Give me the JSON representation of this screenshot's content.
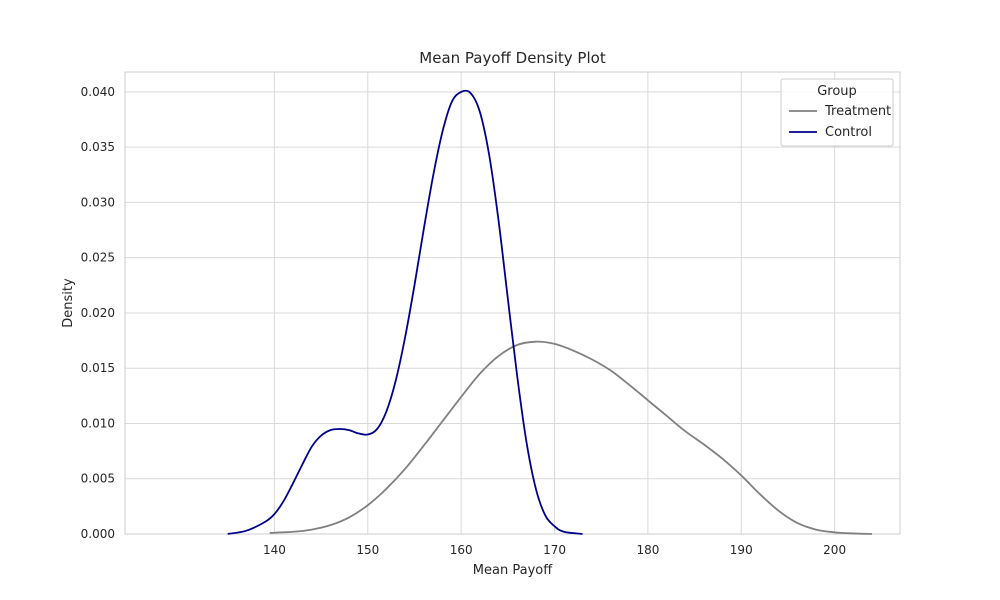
{
  "chart_data": {
    "type": "line",
    "title": "Mean Payoff Density Plot",
    "xlabel": "Mean Payoff",
    "ylabel": "Density",
    "xlim": [
      124,
      207
    ],
    "ylim": [
      0,
      0.0418
    ],
    "xticks": [
      140,
      150,
      160,
      170,
      180,
      190,
      200
    ],
    "xtick_labels": [
      "140",
      "150",
      "160",
      "170",
      "180",
      "190",
      "200"
    ],
    "yticks": [
      0,
      0.005,
      0.01,
      0.015,
      0.02,
      0.025,
      0.03,
      0.035,
      0.04
    ],
    "ytick_labels": [
      "0.000",
      "0.005",
      "0.010",
      "0.015",
      "0.020",
      "0.025",
      "0.030",
      "0.035",
      "0.040"
    ],
    "grid": true,
    "legend": {
      "title": "Group",
      "placement": "top-right"
    },
    "series": [
      {
        "name": "Treatment",
        "color": "#808080",
        "x": [
          139.5,
          142,
          144,
          146,
          148,
          150,
          152,
          154,
          156,
          158,
          160,
          162,
          164,
          166,
          168,
          170,
          172,
          174,
          176,
          178,
          180,
          182,
          184,
          186,
          188,
          190,
          192,
          194,
          196,
          198,
          200,
          202,
          204
        ],
        "y": [
          0.0001,
          0.0002,
          0.0004,
          0.0008,
          0.0015,
          0.0026,
          0.0041,
          0.0059,
          0.008,
          0.0102,
          0.0124,
          0.0145,
          0.0161,
          0.0171,
          0.0174,
          0.0172,
          0.0166,
          0.0158,
          0.0148,
          0.0135,
          0.0121,
          0.0107,
          0.0093,
          0.0081,
          0.0068,
          0.0053,
          0.0036,
          0.0021,
          0.001,
          0.0004,
          0.00015,
          5e-05,
          0.0
        ]
      },
      {
        "name": "Control",
        "color": "#00008b",
        "x": [
          135,
          137,
          139,
          140,
          141,
          142,
          143,
          144,
          145,
          146,
          147,
          148,
          149,
          150,
          151,
          152,
          153,
          154,
          155,
          156,
          157,
          158,
          159,
          160,
          161,
          162,
          163,
          164,
          165,
          166,
          167,
          168,
          169,
          170,
          171,
          173
        ],
        "y": [
          0.0,
          0.0003,
          0.0011,
          0.0018,
          0.003,
          0.0046,
          0.0063,
          0.0079,
          0.0089,
          0.0094,
          0.0095,
          0.0094,
          0.0091,
          0.009,
          0.0095,
          0.0111,
          0.0139,
          0.0178,
          0.0225,
          0.0276,
          0.0324,
          0.0364,
          0.0391,
          0.04,
          0.0399,
          0.0382,
          0.0343,
          0.0284,
          0.0213,
          0.0143,
          0.0083,
          0.0041,
          0.0017,
          0.0007,
          0.0002,
          0.0
        ]
      }
    ]
  }
}
